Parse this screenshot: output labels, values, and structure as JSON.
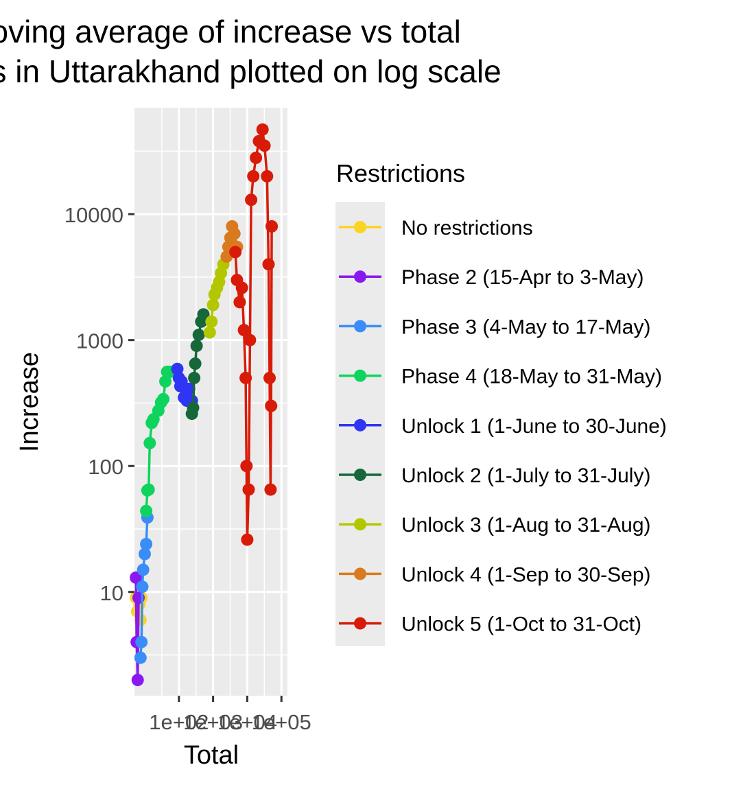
{
  "chart_data": {
    "type": "line",
    "title_lines": [
      "Moving average of increase vs total",
      "cases in Uttarakhand plotted on log scale"
    ],
    "xlabel": "Total",
    "ylabel": "Increase",
    "x_scale": "log10",
    "y_scale": "log10",
    "xlim": [
      5,
      150000
    ],
    "ylim": [
      1.5,
      70000
    ],
    "x_ticks": [
      100,
      1000,
      10000,
      100000
    ],
    "x_tick_labels": [
      "1e+02",
      "1e+03",
      "1e+04",
      "1e+05"
    ],
    "y_ticks": [
      10,
      100,
      1000,
      10000
    ],
    "y_tick_labels": [
      "10",
      "100",
      "1000",
      "10000"
    ],
    "grid": true,
    "panel_background": "#ebebeb",
    "legend": {
      "title": "Restrictions",
      "position": "right"
    },
    "series": [
      {
        "name": "No restrictions",
        "color": "#f9d423",
        "points": [
          [
            5.5,
            9
          ],
          [
            6,
            7
          ],
          [
            6.5,
            9
          ],
          [
            7,
            8
          ],
          [
            7.5,
            6
          ],
          [
            8,
            9
          ]
        ]
      },
      {
        "name": "Phase 2 (15-Apr to 3-May)",
        "color": "#8a19f0",
        "points": [
          [
            5.5,
            13
          ],
          [
            5.8,
            4
          ],
          [
            6.2,
            2
          ],
          [
            6.6,
            9
          ]
        ]
      },
      {
        "name": "Phase 3 (4-May to 17-May)",
        "color": "#3a8df7",
        "points": [
          [
            7.5,
            3
          ],
          [
            8,
            4
          ],
          [
            8.5,
            11
          ],
          [
            9,
            15
          ],
          [
            10,
            20
          ],
          [
            11,
            24
          ],
          [
            12,
            39
          ]
        ]
      },
      {
        "name": "Phase 4 (18-May to 31-May)",
        "color": "#0ed45e",
        "points": [
          [
            11,
            44
          ],
          [
            12,
            64
          ],
          [
            13,
            65
          ],
          [
            14,
            152
          ],
          [
            16,
            220
          ],
          [
            18,
            235
          ],
          [
            25,
            275
          ],
          [
            30,
            320
          ],
          [
            35,
            340
          ],
          [
            40,
            470
          ],
          [
            45,
            560
          ],
          [
            55,
            560
          ]
        ]
      },
      {
        "name": "Unlock 1 (1-June to 30-June)",
        "color": "#2f35f5",
        "points": [
          [
            90,
            590
          ],
          [
            100,
            500
          ],
          [
            110,
            430
          ],
          [
            120,
            470
          ],
          [
            140,
            350
          ],
          [
            170,
            330
          ],
          [
            200,
            410
          ],
          [
            240,
            330
          ]
        ]
      },
      {
        "name": "Unlock 2 (1-July to 31-July)",
        "color": "#16673a",
        "points": [
          [
            240,
            260
          ],
          [
            260,
            290
          ],
          [
            280,
            500
          ],
          [
            300,
            650
          ],
          [
            330,
            900
          ],
          [
            380,
            1100
          ],
          [
            450,
            1400
          ],
          [
            520,
            1600
          ]
        ]
      },
      {
        "name": "Unlock 3 (1-Aug to 31-Aug)",
        "color": "#b3c700",
        "points": [
          [
            800,
            1150
          ],
          [
            900,
            1400
          ],
          [
            1000,
            1900
          ],
          [
            1100,
            2300
          ],
          [
            1300,
            2600
          ],
          [
            1500,
            2900
          ],
          [
            1700,
            3400
          ],
          [
            2000,
            4000
          ]
        ]
      },
      {
        "name": "Unlock 4 (1-Sep to 30-Sep)",
        "color": "#d97a1f",
        "points": [
          [
            2500,
            4600
          ],
          [
            2800,
            5500
          ],
          [
            3200,
            6500
          ],
          [
            3600,
            8000
          ],
          [
            4200,
            7000
          ],
          [
            5000,
            5500
          ]
        ]
      },
      {
        "name": "Unlock 5 (1-Oct to 31-Oct)",
        "color": "#d81b08",
        "points": [
          [
            4500,
            5000
          ],
          [
            5000,
            3000
          ],
          [
            6000,
            2000
          ],
          [
            7000,
            2600
          ],
          [
            8000,
            1200
          ],
          [
            9000,
            500
          ],
          [
            9500,
            100
          ],
          [
            10000,
            26
          ],
          [
            11000,
            65
          ],
          [
            12000,
            1000
          ],
          [
            13000,
            13000
          ],
          [
            15000,
            20000
          ],
          [
            18000,
            28000
          ],
          [
            22000,
            38000
          ],
          [
            28000,
            47000
          ],
          [
            32000,
            35000
          ],
          [
            38000,
            20000
          ],
          [
            42000,
            4000
          ],
          [
            45000,
            500
          ],
          [
            48000,
            65
          ],
          [
            50000,
            300
          ],
          [
            52000,
            8000
          ]
        ]
      }
    ]
  }
}
